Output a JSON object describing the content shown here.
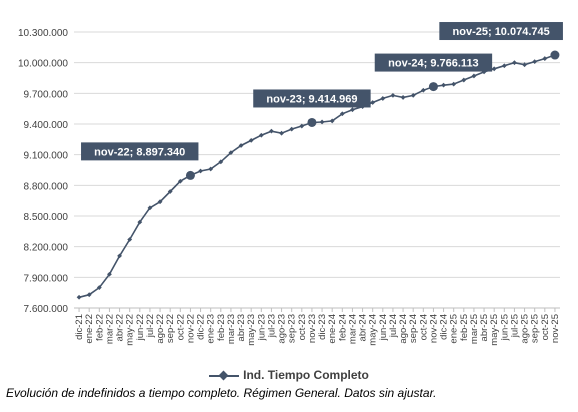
{
  "chart_data": {
    "type": "line",
    "title": "",
    "xlabel": "",
    "ylabel": "",
    "ylim": [
      7600000,
      10300000
    ],
    "yticks": [
      "7.600.000",
      "7.900.000",
      "8.200.000",
      "8.500.000",
      "8.800.000",
      "9.100.000",
      "9.400.000",
      "9.700.000",
      "10.000.000",
      "10.300.000"
    ],
    "ytick_values": [
      7600000,
      7900000,
      8200000,
      8500000,
      8800000,
      9100000,
      9400000,
      9700000,
      10000000,
      10300000
    ],
    "grid": true,
    "legend_position": "bottom",
    "categories": [
      "dic-21",
      "ene-22",
      "feb-22",
      "mar-22",
      "abr-22",
      "may-22",
      "jun-22",
      "jul-22",
      "ago-22",
      "sep-22",
      "oct-22",
      "nov-22",
      "dic-22",
      "ene-23",
      "feb-23",
      "mar-23",
      "abr-23",
      "may-23",
      "jun-23",
      "jul-23",
      "ago-23",
      "sep-23",
      "oct-23",
      "nov-23",
      "dic-23",
      "ene-24",
      "feb-24",
      "mar-24",
      "abr-24",
      "may-24",
      "jun-24",
      "jul-24",
      "ago-24",
      "sep-24",
      "oct-24",
      "nov-24",
      "dic-24",
      "ene-25",
      "feb-25",
      "mar-25",
      "abr-25",
      "may-25",
      "jun-25",
      "jul-25",
      "ago-25",
      "sep-25",
      "oct-25",
      "nov-25"
    ],
    "series": [
      {
        "name": "Ind. Tiempo Completo",
        "color": "#44546a",
        "values": [
          7705000,
          7730000,
          7800000,
          7930000,
          8110000,
          8270000,
          8440000,
          8580000,
          8640000,
          8740000,
          8840000,
          8897340,
          8940000,
          8960000,
          9030000,
          9120000,
          9190000,
          9240000,
          9290000,
          9330000,
          9310000,
          9350000,
          9380000,
          9414969,
          9420000,
          9430000,
          9500000,
          9540000,
          9570000,
          9610000,
          9650000,
          9680000,
          9660000,
          9680000,
          9730000,
          9766113,
          9780000,
          9790000,
          9830000,
          9870000,
          9910000,
          9940000,
          9970000,
          10000000,
          9980000,
          10010000,
          10040000,
          10074745
        ]
      }
    ],
    "annotations": [
      {
        "category": "nov-22",
        "text": "nov-22; 8.897.340"
      },
      {
        "category": "nov-23",
        "text": "nov-23; 9.414.969"
      },
      {
        "category": "nov-24",
        "text": "nov-24; 9.766.113"
      },
      {
        "category": "nov-25",
        "text": "nov-25; 10.074.745"
      }
    ]
  },
  "legend": {
    "label": "Ind. Tiempo Completo"
  },
  "caption": "Evolución de indefinidos a tiempo completo. Régimen General. Datos sin ajustar."
}
